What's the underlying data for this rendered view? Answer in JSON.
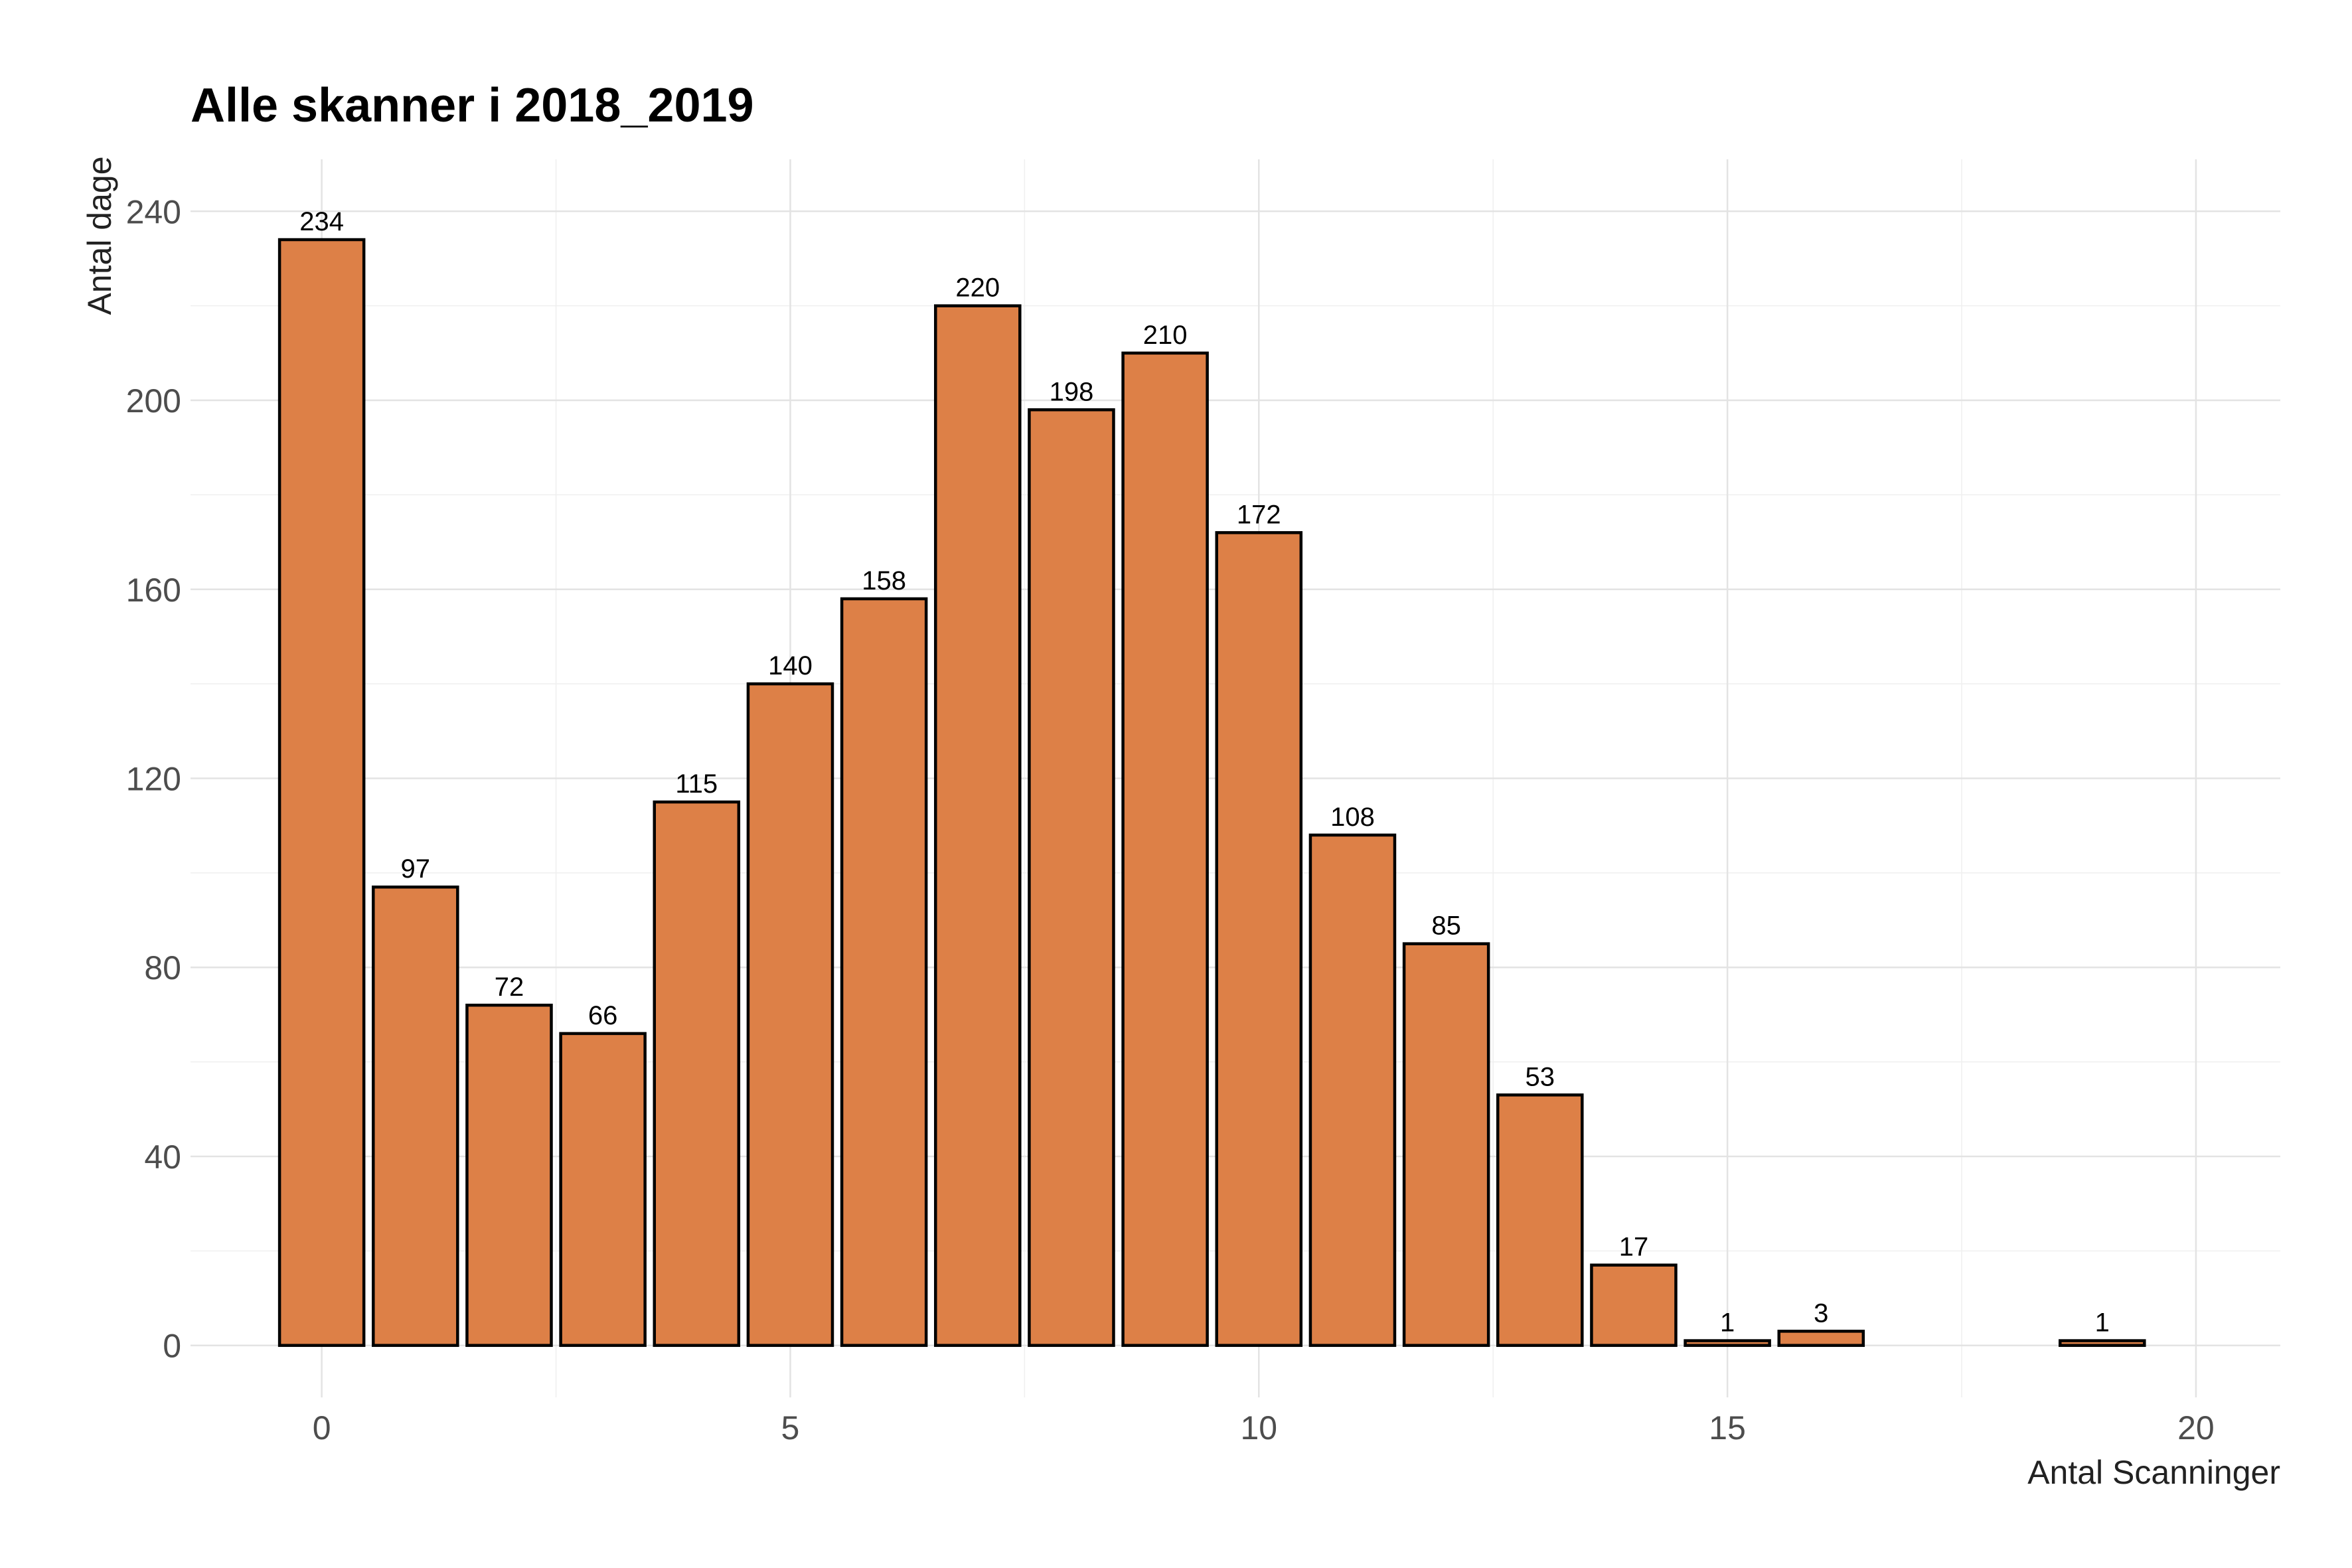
{
  "chart_data": {
    "type": "bar",
    "title": "Alle skanner i 2018_2019",
    "xlabel": "Antal Scanninger",
    "ylabel": "Antal dage",
    "x": [
      0,
      1,
      2,
      3,
      4,
      5,
      6,
      7,
      8,
      9,
      10,
      11,
      12,
      13,
      14,
      15,
      16,
      19
    ],
    "values": [
      234,
      97,
      72,
      66,
      115,
      140,
      158,
      220,
      198,
      210,
      172,
      108,
      85,
      53,
      17,
      1,
      3,
      1
    ],
    "xlim": [
      -1.4,
      20.9
    ],
    "ylim": [
      -11,
      251
    ],
    "xticks": [
      0,
      5,
      10,
      15,
      20
    ],
    "yticks": [
      0,
      40,
      80,
      120,
      160,
      200,
      240
    ],
    "grid": true,
    "legend": "none",
    "bar_color": "#DD8047",
    "bar_edge_color": "#000000"
  }
}
